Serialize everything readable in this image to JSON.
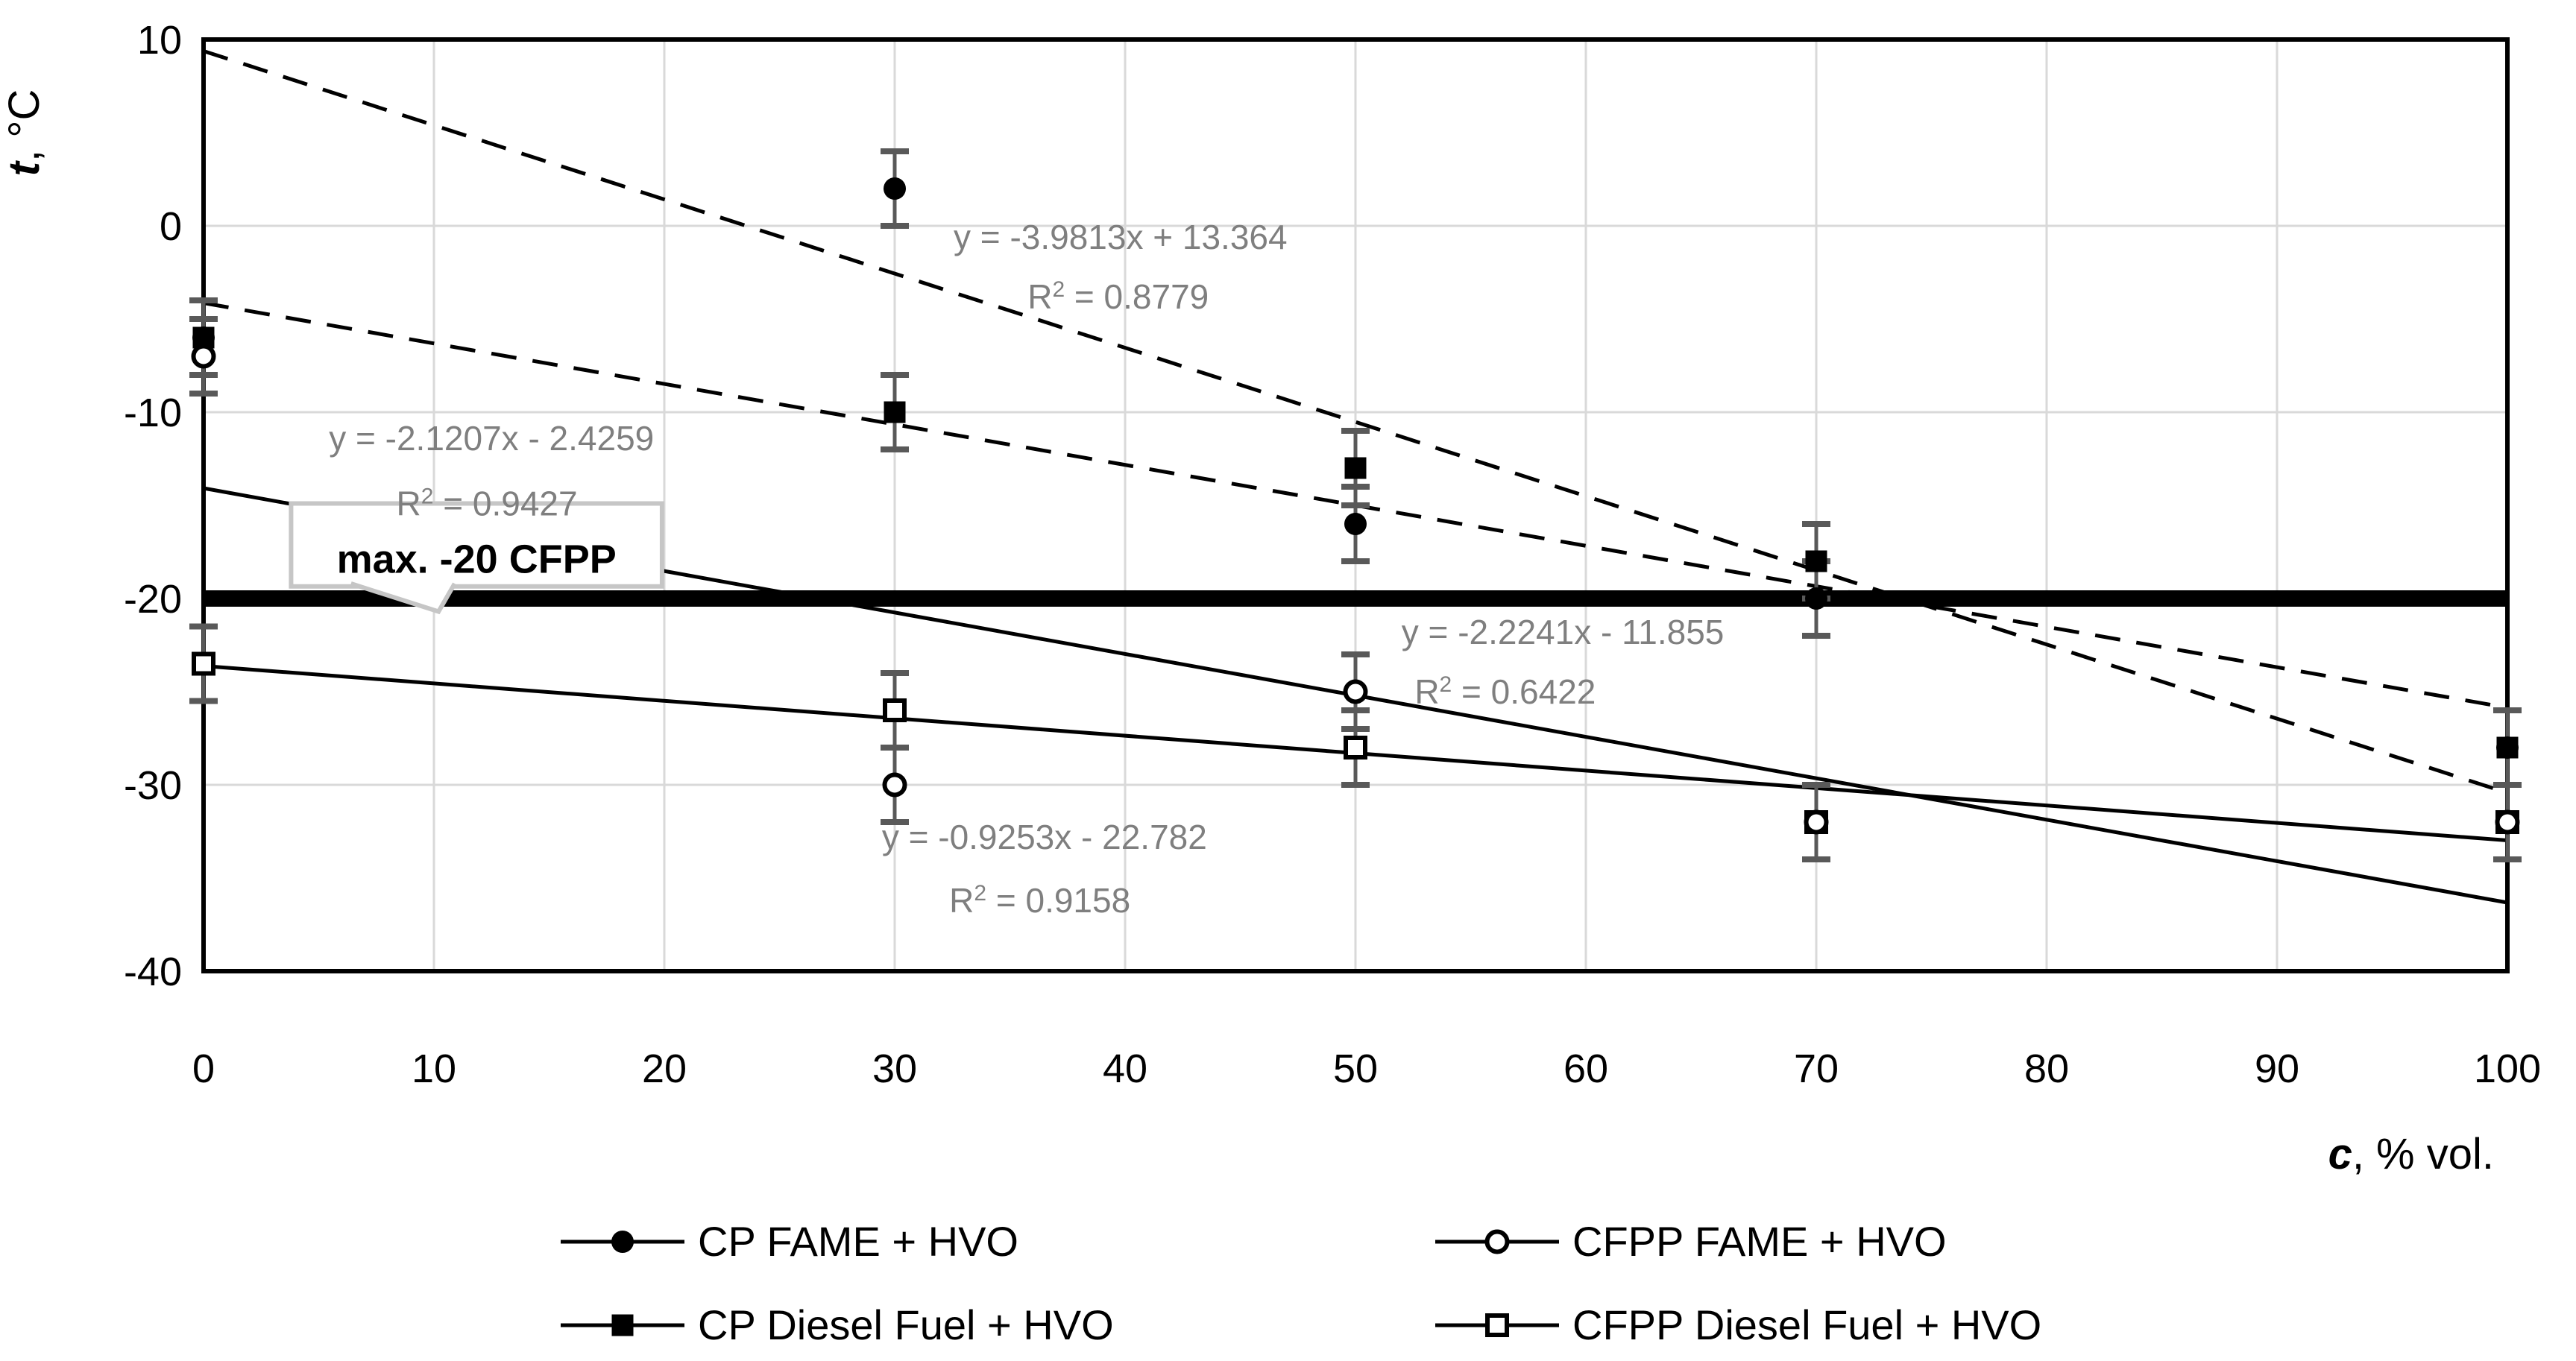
{
  "chart_data": {
    "type": "scatter",
    "title": "",
    "x_axis": {
      "variable": "c",
      "unit": ", % vol.",
      "ticks": [
        0,
        10,
        20,
        30,
        40,
        50,
        60,
        70,
        80,
        90,
        100
      ],
      "range": [
        0,
        100
      ]
    },
    "y_axis": {
      "variable": "t",
      "unit": ", °C",
      "ticks": [
        10,
        0,
        -10,
        -20,
        -30,
        -40
      ],
      "range": [
        -40,
        10
      ]
    },
    "grid": true,
    "legend_position": "bottom",
    "limit_line": {
      "value": -20,
      "label": "max. -20 CFPP"
    },
    "error_bar_plus_minus": 2,
    "series": [
      {
        "name": "CP FAME + HVO",
        "marker": "filled-circle",
        "trend_style": "dashed",
        "x": [
          0,
          30,
          50,
          70,
          100
        ],
        "y": [
          -6,
          2,
          -16,
          -20,
          -28
        ],
        "trend": {
          "at_x0": 9.38,
          "at_x100": -30.43
        },
        "equation": {
          "text": "y = -3.9813x + 13.364",
          "r2": "R² = 0.8779",
          "anchor": {
            "c": 39.8,
            "t": -0.6
          },
          "r2_anchor": {
            "c": 39.7,
            "t": -3.8
          }
        }
      },
      {
        "name": "CP Diesel Fuel + HVO",
        "marker": "filled-square",
        "trend_style": "dashed",
        "x": [
          0,
          30,
          50,
          70,
          100
        ],
        "y": [
          -6,
          -10,
          -13,
          -18,
          -28
        ],
        "trend": {
          "at_x0": -4.14,
          "at_x100": -25.86
        },
        "equation": {
          "text": "y = -2.1207x - 2.4259",
          "r2": "R² = 0.9427",
          "anchor": {
            "c": 12.5,
            "t": -11.4
          },
          "r2_anchor": {
            "c": 12.3,
            "t": -14.9
          }
        }
      },
      {
        "name": "CFPP FAME + HVO",
        "marker": "open-circle",
        "trend_style": "solid",
        "x": [
          0,
          30,
          50,
          70,
          100
        ],
        "y": [
          -7,
          -30,
          -25,
          -32,
          -32
        ],
        "trend": {
          "at_x0": -14.08,
          "at_x100": -36.32
        },
        "equation": {
          "text": "y = -2.2241x - 11.855",
          "r2": "R² = 0.6422",
          "anchor": {
            "c": 59,
            "t": -21.8
          },
          "r2_anchor": {
            "c": 56.5,
            "t": -25.0
          }
        }
      },
      {
        "name": "CFPP Diesel Fuel + HVO",
        "marker": "open-square",
        "trend_style": "solid",
        "x": [
          0,
          30,
          50,
          70,
          100
        ],
        "y": [
          -23.5,
          -26,
          -28,
          -32,
          -32
        ],
        "trend": {
          "at_x0": -23.62,
          "at_x100": -32.98
        },
        "equation": {
          "text": "y = -0.9253x - 22.782",
          "r2": "R² = 0.9158",
          "anchor": {
            "c": 36.5,
            "t": -32.8
          },
          "r2_anchor": {
            "c": 36.3,
            "t": -36.2
          }
        }
      }
    ],
    "legend": [
      {
        "label": "CP FAME + HVO",
        "marker": "filled-circle"
      },
      {
        "label": "CFPP FAME + HVO",
        "marker": "open-circle"
      },
      {
        "label": "CP Diesel Fuel + HVO",
        "marker": "filled-square"
      },
      {
        "label": "CFPP Diesel Fuel + HVO",
        "marker": "open-square"
      }
    ]
  },
  "colors": {
    "background": "#FFFFFF",
    "axis": "#000000",
    "grid": "#D9D9D9",
    "marker": "#000000",
    "error_bar": "#595959",
    "equation_text": "#7F7F7F",
    "callout_border": "#C6C6C6",
    "callout_fill": "#FFFFFF",
    "callout_text": "#000000"
  }
}
